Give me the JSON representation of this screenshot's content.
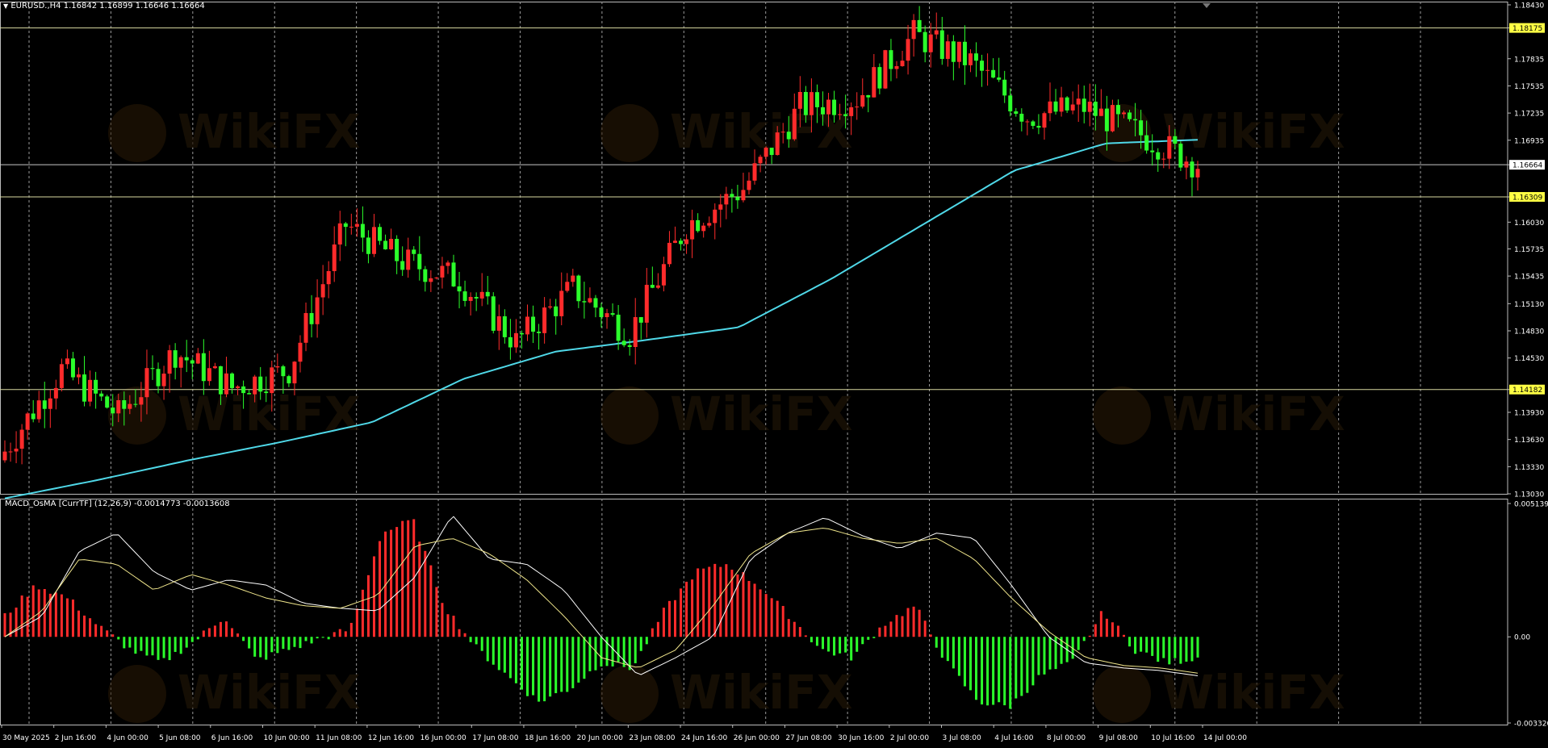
{
  "chart_data": [
    {
      "type": "candlestick",
      "symbol_label": "EURUSD.,H4",
      "ohlc_label": "1.16842 1.16899 1.16646 1.16664",
      "ylim": [
        1.1303,
        1.1843
      ],
      "y_ticks": [
        "1.18430",
        "1.18175",
        "1.17835",
        "1.17535",
        "1.17235",
        "1.16935",
        "1.16664",
        "1.16309",
        "1.16030",
        "1.15735",
        "1.15435",
        "1.15130",
        "1.14830",
        "1.14530",
        "1.14182",
        "1.13930",
        "1.13630",
        "1.13330",
        "1.13030"
      ],
      "price_tags": [
        {
          "value": 1.18175,
          "label": "1.18175",
          "style": "yellow"
        },
        {
          "value": 1.16664,
          "label": "1.16664",
          "style": "white"
        },
        {
          "value": 1.16309,
          "label": "1.16309",
          "style": "yellow"
        },
        {
          "value": 1.14182,
          "label": "1.14182",
          "style": "yellow"
        }
      ],
      "horizontal_lines": [
        {
          "value": 1.18175,
          "color": "#d8d8a0"
        },
        {
          "value": 1.16664,
          "color": "#c8c8c8"
        },
        {
          "value": 1.16309,
          "color": "#d8d8a0"
        },
        {
          "value": 1.14182,
          "color": "#d8d8a0"
        }
      ],
      "x_labels": [
        "30 May 2025",
        "2 Jun 16:00",
        "4 Jun 00:00",
        "5 Jun 08:00",
        "6 Jun 16:00",
        "10 Jun 00:00",
        "11 Jun 08:00",
        "12 Jun 16:00",
        "16 Jun 00:00",
        "17 Jun 08:00",
        "18 Jun 16:00",
        "20 Jun 00:00",
        "23 Jun 08:00",
        "24 Jun 16:00",
        "26 Jun 00:00",
        "27 Jun 08:00",
        "30 Jun 16:00",
        "2 Jul 00:00",
        "3 Jul 08:00",
        "4 Jul 16:00",
        "8 Jul 00:00",
        "9 Jul 08:00",
        "10 Jul 16:00",
        "14 Jul 00:00"
      ],
      "moving_average_color": "#4fd8e8",
      "moving_average_anchor_values": [
        1.1298,
        1.1318,
        1.134,
        1.136,
        1.1382,
        1.143,
        1.146,
        1.1473,
        1.1487,
        1.154,
        1.16,
        1.166,
        1.169,
        1.1694
      ],
      "close_anchor_values": [
        1.135,
        1.144,
        1.139,
        1.146,
        1.142,
        1.144,
        1.16,
        1.156,
        1.154,
        1.147,
        1.153,
        1.148,
        1.16,
        1.164,
        1.173,
        1.174,
        1.181,
        1.178,
        1.172,
        1.173,
        1.17,
        1.1667
      ],
      "candle_colors": {
        "up": "#ff2b2b",
        "down": "#2bff2b"
      }
    },
    {
      "type": "histogram",
      "indicator_label": "MACD_OsMA [CurrTF] (12,26,9) -0.0014773 -0.0013608",
      "ylim": [
        -0.00332,
        0.005139
      ],
      "y_ticks": [
        "0.005139",
        "0.00",
        "-0.003320"
      ],
      "histogram_anchor_values": [
        0.0008,
        0.002,
        0.0015,
        0.0004,
        -0.0005,
        -0.001,
        -0.0002,
        0.0008,
        -0.0009,
        -0.0005,
        -0.0001,
        0.0003,
        0.004,
        0.0045,
        0.0012,
        -0.0004,
        -0.0015,
        -0.0025,
        -0.002,
        -0.001,
        -0.0012,
        0.001,
        0.0025,
        0.0028,
        0.002,
        0.0008,
        -0.0005,
        -0.0008,
        0.0005,
        0.0012,
        -0.001,
        -0.0025,
        -0.0027,
        -0.0015,
        -0.001,
        0.001,
        -0.0005,
        -0.001,
        -0.0008
      ],
      "macd_line_anchor_values": [
        0.0,
        0.0008,
        0.0033,
        0.004,
        0.0025,
        0.0018,
        0.0022,
        0.002,
        0.0013,
        0.0011,
        0.001,
        0.0023,
        0.0047,
        0.003,
        0.0028,
        0.0018,
        0.0,
        -0.0015,
        -0.0008,
        0.0,
        0.003,
        0.004,
        0.0046,
        0.0039,
        0.0034,
        0.004,
        0.0038,
        0.002,
        0.0,
        -0.001,
        -0.0012,
        -0.0013,
        -0.0015
      ],
      "signal_line_anchor_values": [
        0.0,
        0.001,
        0.003,
        0.0028,
        0.0018,
        0.0024,
        0.002,
        0.0015,
        0.0012,
        0.0011,
        0.0016,
        0.0035,
        0.0038,
        0.0032,
        0.0022,
        0.0008,
        -0.0008,
        -0.0012,
        -0.0005,
        0.0012,
        0.0032,
        0.004,
        0.0042,
        0.0038,
        0.0036,
        0.0038,
        0.003,
        0.0015,
        0.0002,
        -0.0008,
        -0.0011,
        -0.0012,
        -0.0014
      ],
      "colors": {
        "positive": "#ff2b2b",
        "negative": "#2bff2b",
        "macd_line": "#ffffff",
        "signal_line": "#f0e68c"
      }
    }
  ],
  "watermark_text": "WikiFX"
}
